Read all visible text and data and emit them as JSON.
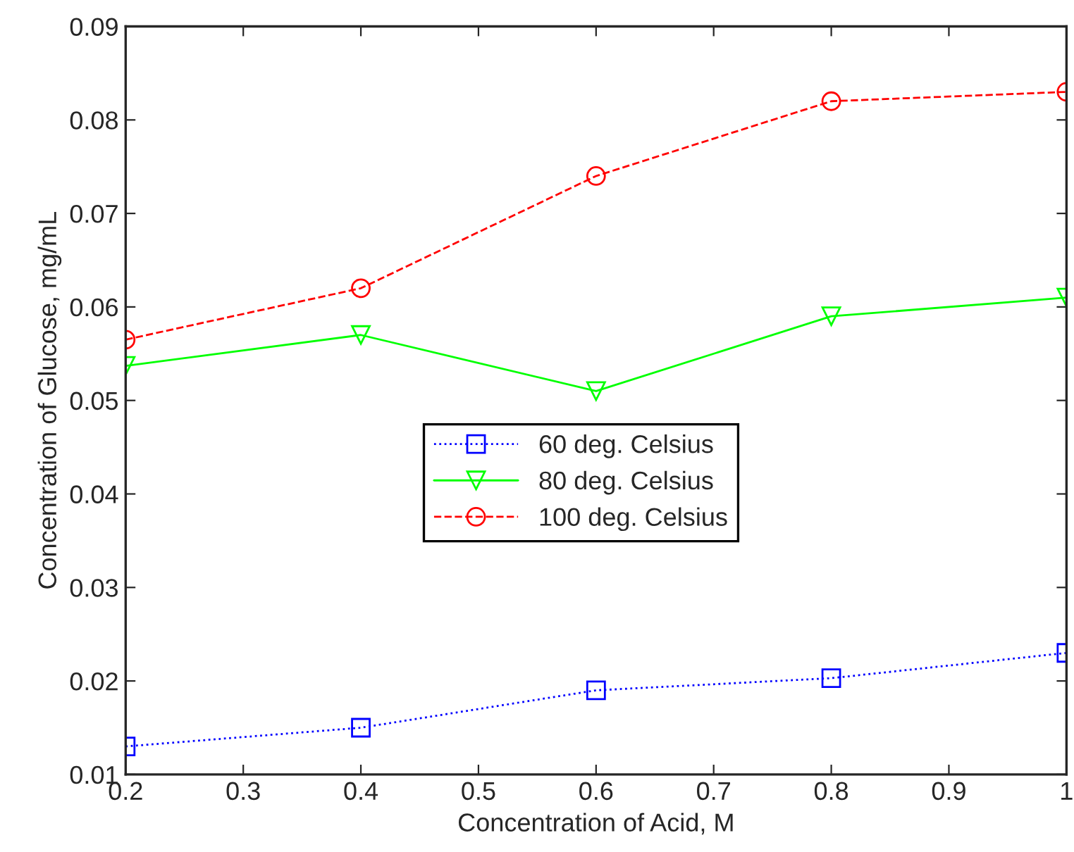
{
  "chart_data": {
    "type": "line",
    "xlabel": "Concentration of Acid, M",
    "ylabel": "Concentration of Glucose, mg/mL",
    "x": [
      0.2,
      0.4,
      0.6,
      0.8,
      1.0
    ],
    "series": [
      {
        "name": "60 deg. Celsius",
        "color": "#0000ff",
        "marker": "square",
        "line_style": "dotted",
        "values": [
          0.013,
          0.015,
          0.019,
          0.0203,
          0.023
        ]
      },
      {
        "name": "80 deg. Celsius",
        "color": "#00ff00",
        "marker": "triangle",
        "line_style": "solid",
        "values": [
          0.0537,
          0.057,
          0.051,
          0.059,
          0.061
        ]
      },
      {
        "name": "100 deg. Celsius",
        "color": "#ff0000",
        "marker": "circle",
        "line_style": "dashed",
        "values": [
          0.0565,
          0.062,
          0.074,
          0.082,
          0.083
        ]
      }
    ],
    "xlim": [
      0.2,
      1.0
    ],
    "xticks": [
      0.2,
      0.3,
      0.4,
      0.5,
      0.6,
      0.7,
      0.8,
      0.9,
      {
        "value": 1.0,
        "label": "1"
      }
    ],
    "ylim": [
      0.01,
      0.09
    ],
    "yticks": [
      0.01,
      0.02,
      0.03,
      0.04,
      0.05,
      0.06,
      0.07,
      0.08,
      0.09
    ],
    "grid": false,
    "legend": "center"
  }
}
